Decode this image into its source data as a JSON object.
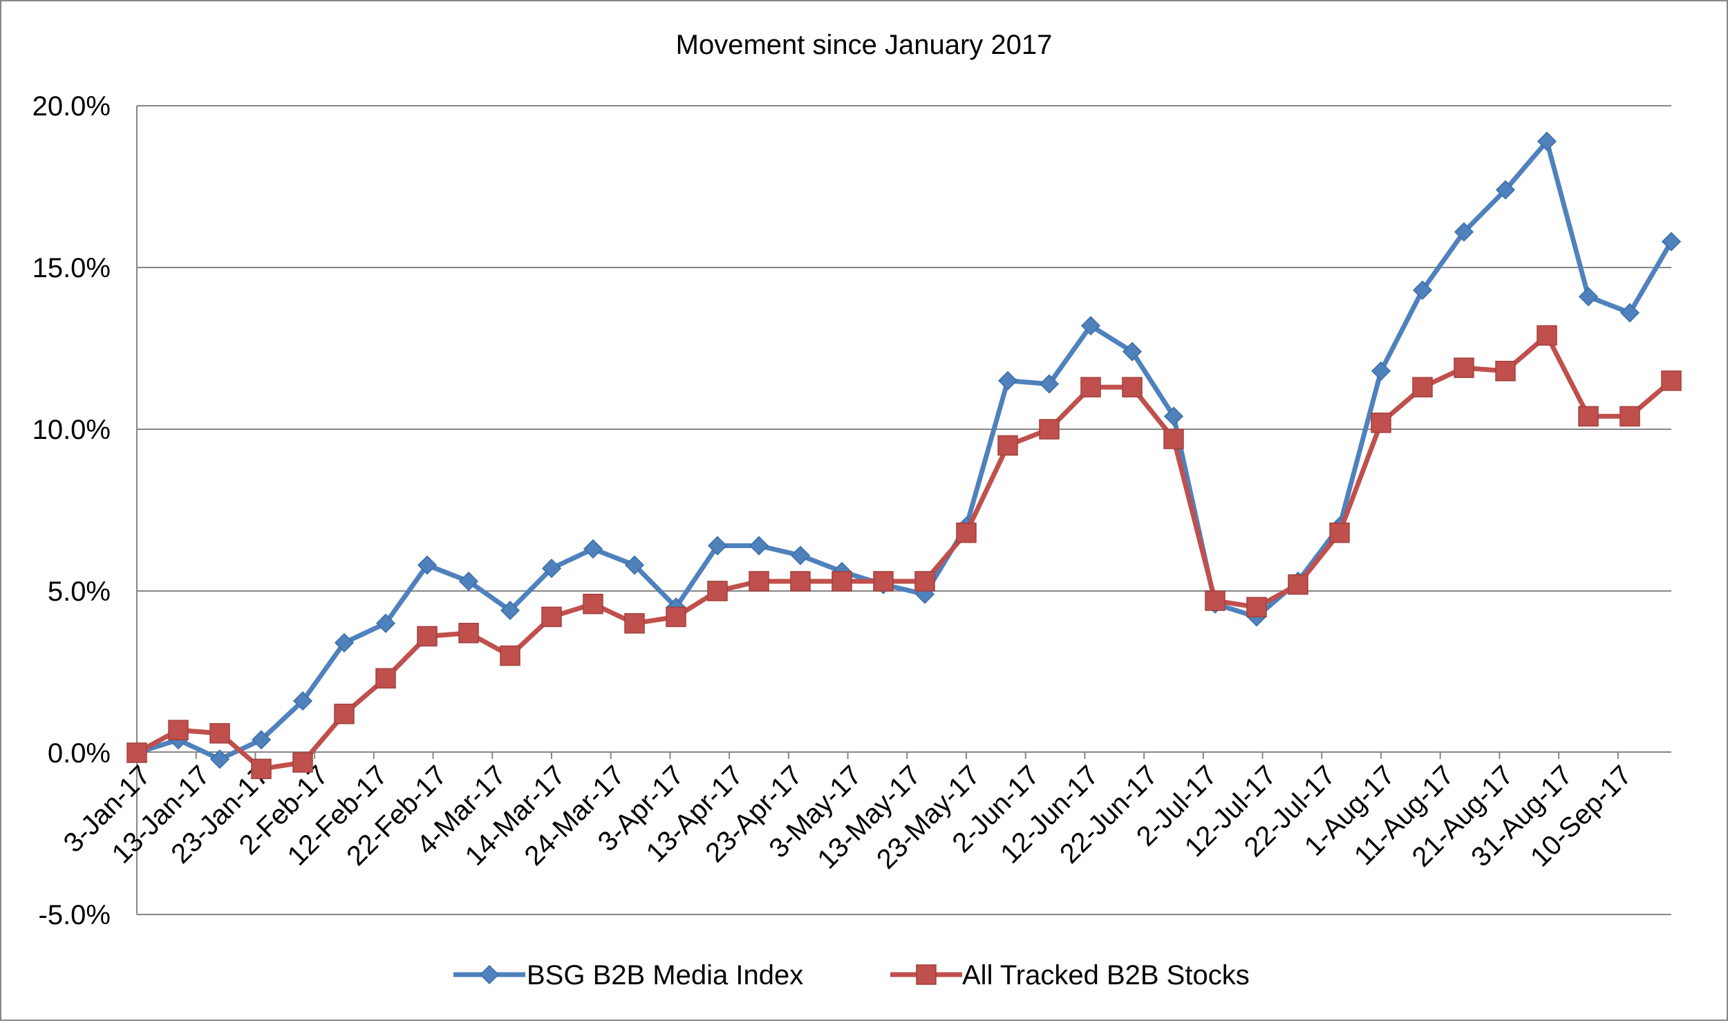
{
  "chart_data": {
    "type": "line",
    "title": "Movement since January 2017",
    "xlabel": "",
    "ylabel": "",
    "ylim": [
      -5.0,
      20.0
    ],
    "yticks": [
      -5.0,
      0.0,
      5.0,
      10.0,
      15.0,
      20.0
    ],
    "ytick_labels": [
      "-5.0%",
      "0.0%",
      "5.0%",
      "10.0%",
      "15.0%",
      "20.0%"
    ],
    "x_tick_labels": [
      "3-Jan-17",
      "13-Jan-17",
      "23-Jan-17",
      "2-Feb-17",
      "12-Feb-17",
      "22-Feb-17",
      "4-Mar-17",
      "14-Mar-17",
      "24-Mar-17",
      "3-Apr-17",
      "13-Apr-17",
      "23-Apr-17",
      "3-May-17",
      "13-May-17",
      "23-May-17",
      "2-Jun-17",
      "12-Jun-17",
      "22-Jun-17",
      "2-Jul-17",
      "12-Jul-17",
      "22-Jul-17",
      "1-Aug-17",
      "11-Aug-17",
      "21-Aug-17",
      "31-Aug-17",
      "10-Sep-17"
    ],
    "x": [
      "2017-01-03",
      "2017-01-10",
      "2017-01-17",
      "2017-01-24",
      "2017-01-31",
      "2017-02-07",
      "2017-02-14",
      "2017-02-21",
      "2017-02-28",
      "2017-03-07",
      "2017-03-14",
      "2017-03-21",
      "2017-03-28",
      "2017-04-04",
      "2017-04-11",
      "2017-04-18",
      "2017-04-25",
      "2017-05-02",
      "2017-05-09",
      "2017-05-16",
      "2017-05-23",
      "2017-05-30",
      "2017-06-06",
      "2017-06-13",
      "2017-06-20",
      "2017-06-27",
      "2017-07-04",
      "2017-07-11",
      "2017-07-18",
      "2017-07-25",
      "2017-08-01",
      "2017-08-08",
      "2017-08-15",
      "2017-08-22",
      "2017-08-29",
      "2017-09-05",
      "2017-09-12",
      "2017-09-19"
    ],
    "series": [
      {
        "name": "BSG B2B Media Index",
        "color": "#4F81BD",
        "marker": "diamond",
        "values": [
          0.0,
          0.4,
          -0.2,
          0.4,
          1.6,
          3.4,
          4.0,
          5.8,
          5.3,
          4.4,
          5.7,
          6.3,
          5.8,
          4.5,
          6.4,
          6.4,
          6.1,
          5.6,
          5.2,
          4.9,
          7.0,
          11.5,
          11.4,
          13.2,
          12.4,
          10.4,
          4.6,
          4.2,
          5.3,
          7.0,
          11.8,
          14.3,
          16.1,
          17.4,
          18.9,
          14.1,
          13.6,
          15.8
        ]
      },
      {
        "name": "All Tracked B2B Stocks",
        "color": "#C0504D",
        "marker": "square",
        "values": [
          0.0,
          0.7,
          0.6,
          -0.5,
          -0.3,
          1.2,
          2.3,
          3.6,
          3.7,
          3.0,
          4.2,
          4.6,
          4.0,
          4.2,
          5.0,
          5.3,
          5.3,
          5.3,
          5.3,
          5.3,
          6.8,
          9.5,
          10.0,
          11.3,
          11.3,
          9.7,
          4.7,
          4.5,
          5.2,
          6.8,
          10.2,
          11.3,
          11.9,
          11.8,
          12.9,
          10.4,
          10.4,
          11.5
        ]
      }
    ],
    "grid": true,
    "legend": "bottom"
  }
}
